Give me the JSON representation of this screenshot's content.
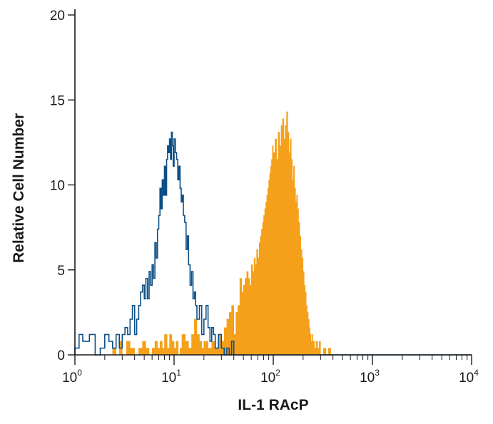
{
  "chart_data": {
    "type": "histogram",
    "title": "",
    "xlabel": "IL-1 RAcP",
    "ylabel": "Relative Cell Number",
    "x_scale": "log",
    "xlim": [
      1,
      10000
    ],
    "ylim": [
      0,
      20
    ],
    "x_ticks": [
      {
        "value": 1,
        "base": "10",
        "exp": "0"
      },
      {
        "value": 10,
        "base": "10",
        "exp": "1"
      },
      {
        "value": 100,
        "base": "10",
        "exp": "2"
      },
      {
        "value": 1000,
        "base": "10",
        "exp": "3"
      },
      {
        "value": 10000,
        "base": "10",
        "exp": "4"
      }
    ],
    "y_ticks": [
      "0",
      "5",
      "10",
      "15",
      "20"
    ],
    "legend": "none",
    "grid": false,
    "series": [
      {
        "color": "#f5a01a",
        "style": "filled",
        "x": [
          1,
          2.2,
          2.4,
          2.6,
          2.8,
          3,
          3.3,
          3.6,
          4,
          4.4,
          4.8,
          5.2,
          5.6,
          6,
          6.4,
          6.8,
          7.2,
          7.6,
          8,
          8.5,
          9,
          9.5,
          10,
          10.5,
          11,
          11.5,
          12,
          13,
          14,
          15,
          16,
          17,
          18,
          19,
          20,
          22,
          24,
          26,
          28,
          30,
          32,
          34,
          36,
          38,
          40,
          42,
          44,
          46,
          48,
          50,
          52,
          54,
          56,
          58,
          60,
          62,
          64,
          66,
          68,
          70,
          72,
          74,
          76,
          78,
          80,
          82,
          84,
          86,
          88,
          90,
          92,
          94,
          96,
          98,
          100,
          104,
          108,
          112,
          116,
          120,
          124,
          128,
          132,
          136,
          140,
          144,
          148,
          152,
          156,
          160,
          164,
          168,
          172,
          176,
          180,
          185,
          190,
          195,
          200,
          205,
          210,
          215,
          220,
          225,
          230,
          235,
          240,
          245,
          250,
          260,
          270,
          280,
          290,
          300,
          320,
          340,
          360,
          380,
          400,
          450,
          500,
          1000,
          10000
        ],
        "y": [
          0,
          0,
          0.4,
          0,
          0.8,
          0,
          0.8,
          0.4,
          0,
          0.4,
          0.8,
          0.4,
          0,
          0.4,
          0.8,
          0.4,
          0.8,
          0.4,
          1.2,
          0.4,
          1.2,
          0.8,
          0.4,
          0.8,
          0,
          0.4,
          1.2,
          0.8,
          0.4,
          1.2,
          2.1,
          1.2,
          0.8,
          0.4,
          0.8,
          0.4,
          0.8,
          0.4,
          1.2,
          0.8,
          1.6,
          2.1,
          2.5,
          2.9,
          1.2,
          2.5,
          2.9,
          4.5,
          3.7,
          4.1,
          4.5,
          4.9,
          4.5,
          4.1,
          5.3,
          4.9,
          5.7,
          5.3,
          6.2,
          5.7,
          6.6,
          7,
          7.4,
          7.8,
          8.2,
          8.6,
          9,
          9.4,
          9.8,
          10.3,
          10.7,
          11.1,
          11.5,
          12.3,
          11.9,
          12.7,
          11.5,
          13.1,
          12.3,
          13.5,
          13.9,
          12.7,
          13.5,
          14.3,
          13.1,
          11.9,
          12.7,
          11.5,
          10.3,
          11.1,
          9.8,
          9,
          9.4,
          8.6,
          7.8,
          7,
          6.2,
          5.7,
          4.9,
          4.1,
          3.7,
          2.9,
          2.5,
          2.1,
          1.6,
          1.2,
          0.8,
          1.2,
          0.8,
          0.4,
          0.8,
          0.4,
          0.8,
          0,
          0.4,
          0,
          0.4,
          0,
          0,
          0,
          0,
          0,
          0
        ]
      },
      {
        "color": "#0d4f86",
        "style": "outline",
        "x": [
          1,
          1.1,
          1.2,
          1.4,
          1.6,
          1.8,
          2,
          2.2,
          2.4,
          2.6,
          2.8,
          3,
          3.2,
          3.4,
          3.6,
          3.8,
          4,
          4.2,
          4.4,
          4.6,
          4.8,
          5,
          5.2,
          5.4,
          5.6,
          5.8,
          6,
          6.2,
          6.4,
          6.6,
          6.8,
          7,
          7.2,
          7.4,
          7.6,
          7.8,
          8,
          8.2,
          8.4,
          8.6,
          8.8,
          9,
          9.2,
          9.4,
          9.6,
          9.8,
          10,
          10.3,
          10.6,
          10.9,
          11.2,
          11.5,
          11.8,
          12.1,
          12.4,
          12.8,
          13.2,
          13.6,
          14,
          14.5,
          15,
          15.5,
          16,
          16.5,
          17,
          18,
          19,
          20,
          21,
          22,
          23,
          24,
          25,
          26,
          28,
          30,
          32,
          34,
          36,
          38,
          40,
          45,
          50,
          60,
          80,
          100,
          150,
          200,
          300,
          400,
          500,
          600,
          700,
          800,
          900,
          1000,
          10000
        ],
        "y": [
          0.4,
          1.2,
          0.8,
          1.2,
          0,
          0.4,
          1.2,
          0.8,
          0.4,
          1.2,
          0.4,
          1.2,
          1.6,
          1.2,
          2.1,
          2.9,
          1.2,
          2.1,
          2.9,
          3.7,
          4.1,
          3.3,
          4.5,
          3.3,
          4.9,
          4.1,
          5.3,
          4.5,
          6.6,
          5.7,
          7.4,
          8.2,
          9.8,
          8.6,
          10.3,
          9.4,
          11.1,
          9.4,
          11.5,
          12.3,
          11.9,
          12.7,
          11.5,
          13.1,
          12.3,
          11.1,
          12.7,
          11.9,
          11.5,
          10.3,
          11.1,
          9.8,
          9,
          9.4,
          8.2,
          7.8,
          6.2,
          7,
          5.3,
          4.1,
          4.9,
          3.3,
          3.7,
          2.9,
          2.1,
          2.9,
          1.2,
          2.1,
          2.9,
          1.6,
          0.8,
          1.6,
          1.2,
          0.4,
          1.2,
          0.4,
          0,
          0.4,
          0,
          0.8,
          0,
          0,
          0,
          0,
          0,
          0,
          0,
          0,
          0,
          0,
          0,
          0,
          0,
          0,
          0,
          0,
          0
        ]
      }
    ]
  }
}
